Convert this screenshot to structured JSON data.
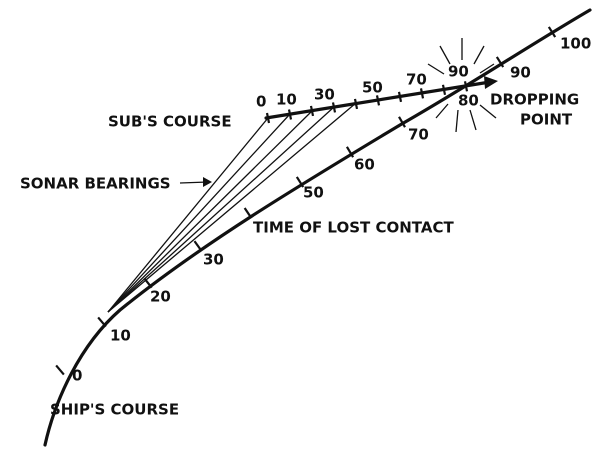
{
  "labels": {
    "sub_course": "SUB'S COURSE",
    "sonar_bearings": "SONAR BEARINGS",
    "time_of_lost_contact": "TIME OF LOST CONTACT",
    "dropping_point": [
      "DROPPING",
      "POINT"
    ],
    "ships_course": "SHIP'S COURSE"
  },
  "ship_ticks": [
    "0",
    "10",
    "20",
    "30",
    "50",
    "60",
    "70",
    "80",
    "90",
    "100"
  ],
  "sub_ticks": [
    "0",
    "10",
    "30",
    "50",
    "70",
    "90"
  ]
}
